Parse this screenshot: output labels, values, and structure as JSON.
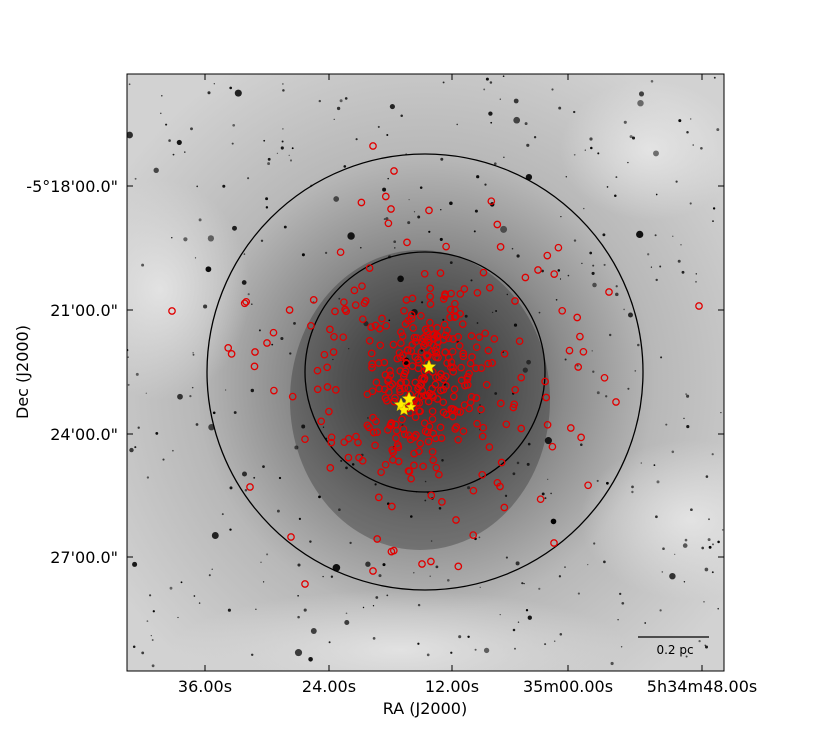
{
  "chart_data": {
    "type": "scatter",
    "title": "",
    "xlabel": "RA (J2000)",
    "ylabel": "Dec (J2000)",
    "x_ticks": [
      "36.00s",
      "24.00s",
      "12.00s",
      "35m00.00s",
      "5h34m48.00s"
    ],
    "y_ticks": [
      "-5°18'00.0\"",
      "21'00.0\"",
      "24'00.0\"",
      "27'00.0\""
    ],
    "scale_bar_label": "0.2 pc",
    "background": "grayscale nebula image (inverted)",
    "grid": false,
    "colors": {
      "sources": "#e00000",
      "massive_stars": "#ffee00",
      "circles": "#000000"
    },
    "series": [
      {
        "name": "",
        "marker": "open red circle"
      },
      {
        "name": "",
        "marker": "yellow star"
      }
    ]
  }
}
